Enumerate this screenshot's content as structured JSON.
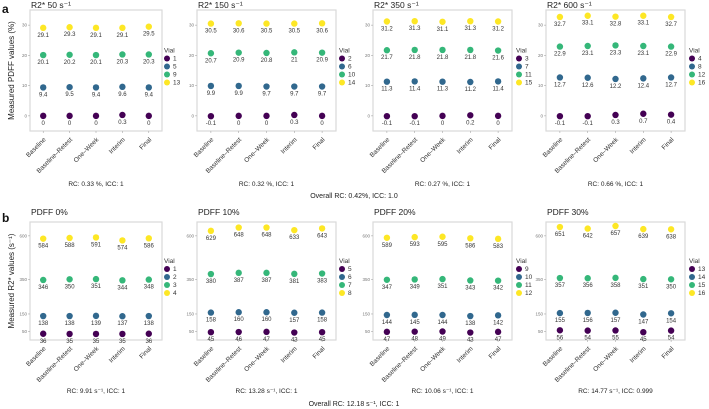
{
  "panel_labels": [
    "a",
    "b"
  ],
  "vial_legend_title": "Vial",
  "chart_data": [
    {
      "type": "scatter",
      "row": "a",
      "ylabel": "Measured PDFF values (%)",
      "yticks": [
        0,
        10,
        20,
        30
      ],
      "ylim": [
        -5,
        35
      ],
      "categories": [
        "Baseline",
        "Baseline–Retest",
        "One–Week",
        "Interim",
        "Final"
      ],
      "overall": "Overall RC: 0.42%, ICC: 1.0",
      "colors": [
        "#440154",
        "#31688e",
        "#35b779",
        "#fde725"
      ],
      "panels": [
        {
          "title": "R2* 50 s⁻¹",
          "rc": "RC: 0.33 %, ICC: 1",
          "series": [
            {
              "name": "1",
              "values": [
                0,
                0,
                0,
                0.3,
                0
              ]
            },
            {
              "name": "5",
              "values": [
                9.4,
                9.5,
                9.4,
                9.6,
                9.4
              ]
            },
            {
              "name": "9",
              "values": [
                20.1,
                20.2,
                20.1,
                20.3,
                20.3
              ]
            },
            {
              "name": "13",
              "values": [
                29.1,
                29.3,
                29.1,
                29.1,
                29.5
              ]
            }
          ]
        },
        {
          "title": "R2* 150 s⁻¹",
          "rc": "RC: 0.32 %, ICC: 1",
          "series": [
            {
              "name": "2",
              "values": [
                -0.1,
                0,
                0,
                0.3,
                0
              ]
            },
            {
              "name": "6",
              "values": [
                9.9,
                9.9,
                9.7,
                9.7,
                9.7
              ]
            },
            {
              "name": "10",
              "values": [
                20.7,
                20.9,
                20.8,
                21,
                20.9
              ]
            },
            {
              "name": "14",
              "values": [
                30.5,
                30.6,
                30.5,
                30.5,
                30.6
              ]
            }
          ]
        },
        {
          "title": "R2* 350 s⁻¹",
          "rc": "RC: 0.27 %, ICC: 1",
          "series": [
            {
              "name": "3",
              "values": [
                -0.1,
                -0.1,
                0,
                0.2,
                0
              ]
            },
            {
              "name": "7",
              "values": [
                11.3,
                11.4,
                11.3,
                11.2,
                11.4
              ]
            },
            {
              "name": "11",
              "values": [
                21.7,
                21.8,
                21.8,
                21.8,
                21.6
              ]
            },
            {
              "name": "15",
              "values": [
                31.2,
                31.3,
                31.1,
                31.3,
                31.2
              ]
            }
          ]
        },
        {
          "title": "R2* 600 s⁻¹",
          "rc": "RC: 0.66 %, ICC: 1",
          "series": [
            {
              "name": "4",
              "values": [
                -0.1,
                -0.1,
                0.3,
                0.7,
                0.4
              ]
            },
            {
              "name": "8",
              "values": [
                12.7,
                12.6,
                12.2,
                12.4,
                12.7
              ]
            },
            {
              "name": "12",
              "values": [
                22.9,
                23.1,
                23.3,
                23.1,
                22.9
              ]
            },
            {
              "name": "16",
              "values": [
                32.7,
                33.1,
                32.8,
                33.1,
                32.7
              ]
            }
          ]
        }
      ]
    },
    {
      "type": "scatter",
      "row": "b",
      "ylabel": "Measured R2* values (s⁻¹)",
      "yticks": [
        50,
        150,
        350,
        600
      ],
      "ylim": [
        0,
        680
      ],
      "categories": [
        "Baseline",
        "Baseline–Retest",
        "One–Week",
        "Interim",
        "Final"
      ],
      "overall": "Overall RC: 12.18 s⁻¹, ICC: 1",
      "colors": [
        "#440154",
        "#31688e",
        "#35b779",
        "#fde725"
      ],
      "panels": [
        {
          "title": "PDFF 0%",
          "rc": "RC: 9.91 s⁻¹, ICC: 1",
          "series": [
            {
              "name": "1",
              "values": [
                36,
                35,
                35,
                35,
                36
              ]
            },
            {
              "name": "2",
              "values": [
                138,
                138,
                139,
                137,
                138
              ]
            },
            {
              "name": "3",
              "values": [
                346,
                350,
                351,
                344,
                348
              ]
            },
            {
              "name": "4",
              "values": [
                584,
                588,
                591,
                574,
                586
              ]
            }
          ]
        },
        {
          "title": "PDFF 10%",
          "rc": "RC: 13.28 s⁻¹, ICC: 1",
          "series": [
            {
              "name": "5",
              "values": [
                45,
                46,
                47,
                43,
                45
              ]
            },
            {
              "name": "6",
              "values": [
                158,
                160,
                160,
                157,
                158
              ]
            },
            {
              "name": "7",
              "values": [
                380,
                387,
                387,
                381,
                383
              ]
            },
            {
              "name": "8",
              "values": [
                629,
                648,
                648,
                633,
                643
              ]
            }
          ]
        },
        {
          "title": "PDFF 20%",
          "rc": "RC: 10.06 s⁻¹, ICC: 1",
          "series": [
            {
              "name": "9",
              "values": [
                47,
                48,
                49,
                43,
                47
              ]
            },
            {
              "name": "10",
              "values": [
                144,
                145,
                144,
                138,
                142
              ]
            },
            {
              "name": "11",
              "values": [
                347,
                349,
                351,
                343,
                342
              ]
            },
            {
              "name": "12",
              "values": [
                589,
                593,
                595,
                586,
                583
              ]
            }
          ]
        },
        {
          "title": "PDFF 30%",
          "rc": "RC: 14.77 s⁻¹, ICC: 0.999",
          "series": [
            {
              "name": "13",
              "values": [
                56,
                54,
                55,
                45,
                54
              ]
            },
            {
              "name": "14",
              "values": [
                155,
                156,
                157,
                147,
                154
              ]
            },
            {
              "name": "15",
              "values": [
                357,
                356,
                358,
                351,
                350
              ]
            },
            {
              "name": "16",
              "values": [
                651,
                642,
                657,
                639,
                638
              ]
            }
          ]
        }
      ]
    }
  ]
}
